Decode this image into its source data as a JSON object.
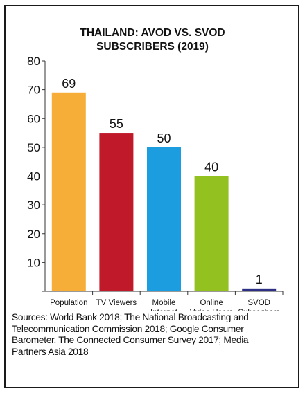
{
  "chart_data": {
    "type": "bar",
    "title_lines": [
      "THAILAND: AVOD VS. SVOD",
      "SUBSCRIBERS (2019)"
    ],
    "categories": [
      [
        "Population"
      ],
      [
        "TV Viewers"
      ],
      [
        "Mobile",
        "Internet"
      ],
      [
        "Online",
        "Video Users"
      ],
      [
        "SVOD",
        "Subscribers"
      ]
    ],
    "values": [
      69,
      55,
      50,
      40,
      1
    ],
    "colors": [
      "#f6ae38",
      "#c0192a",
      "#1c9de0",
      "#93c11f",
      "#2c2f83"
    ],
    "ylim": [
      0,
      80
    ],
    "yticks": [
      10,
      20,
      30,
      40,
      50,
      60,
      70,
      80
    ],
    "grid": false,
    "xlabel": "",
    "ylabel": ""
  },
  "sources_lines": [
    "Sources: World Bank 2018; The National Broadcasting and",
    "Telecommunication Commission 2018; Google Consumer",
    "Barometer. The Connected Consumer Survey 2017; Media",
    "Partners Asia 2018"
  ]
}
